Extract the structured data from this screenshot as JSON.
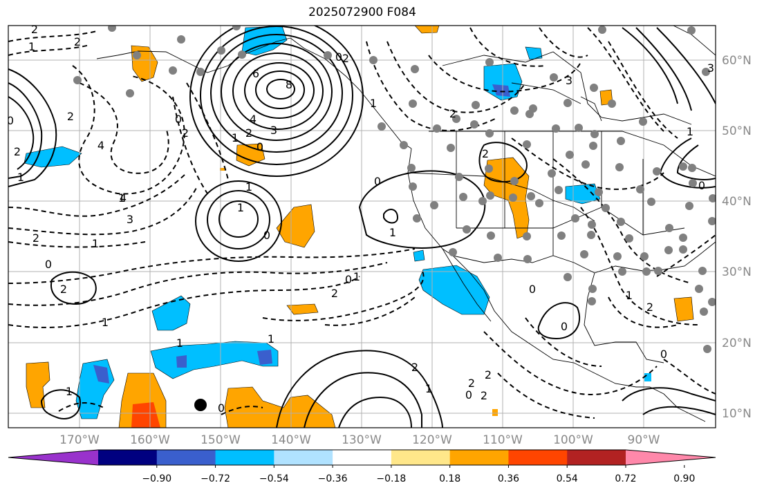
{
  "title": "2025072900 F084",
  "lon_ticks": [
    "170°W",
    "160°W",
    "150°W",
    "140°W",
    "130°W",
    "120°W",
    "110°W",
    "100°W",
    "90°W"
  ],
  "lat_ticks": [
    "60°N",
    "50°N",
    "40°N",
    "30°N",
    "20°N",
    "10°N"
  ],
  "colorbar": {
    "labels": [
      "−0.90",
      "−0.72",
      "−0.54",
      "−0.36",
      "−0.18",
      "0.18",
      "0.36",
      "0.54",
      "0.72",
      "0.90"
    ],
    "colors": [
      "#9932cc",
      "#000080",
      "#3a5fcd",
      "#00bfff",
      "#b0e2ff",
      "#ffffff",
      "#ffe78a",
      "#ffa500",
      "#ff4500",
      "#b22222",
      "#ff88aa"
    ]
  },
  "contour_labels": [
    "2",
    "1",
    "2",
    "0",
    "2",
    "4",
    "6",
    "8",
    "4",
    "3",
    "2",
    "1",
    "0",
    "4",
    "3",
    "2",
    "1",
    "0",
    "2",
    "1",
    "0",
    "1",
    "2",
    "1",
    "0",
    "1",
    "2",
    "2",
    "0",
    "0",
    "1",
    "2",
    "1",
    "0",
    "0",
    "1",
    "3",
    "2",
    "1",
    "0",
    "1",
    "2",
    "1",
    "2",
    "2",
    "0",
    "0",
    "1",
    "2",
    "1",
    "0",
    "2",
    "1",
    "2",
    "1",
    "3",
    "0"
  ]
}
